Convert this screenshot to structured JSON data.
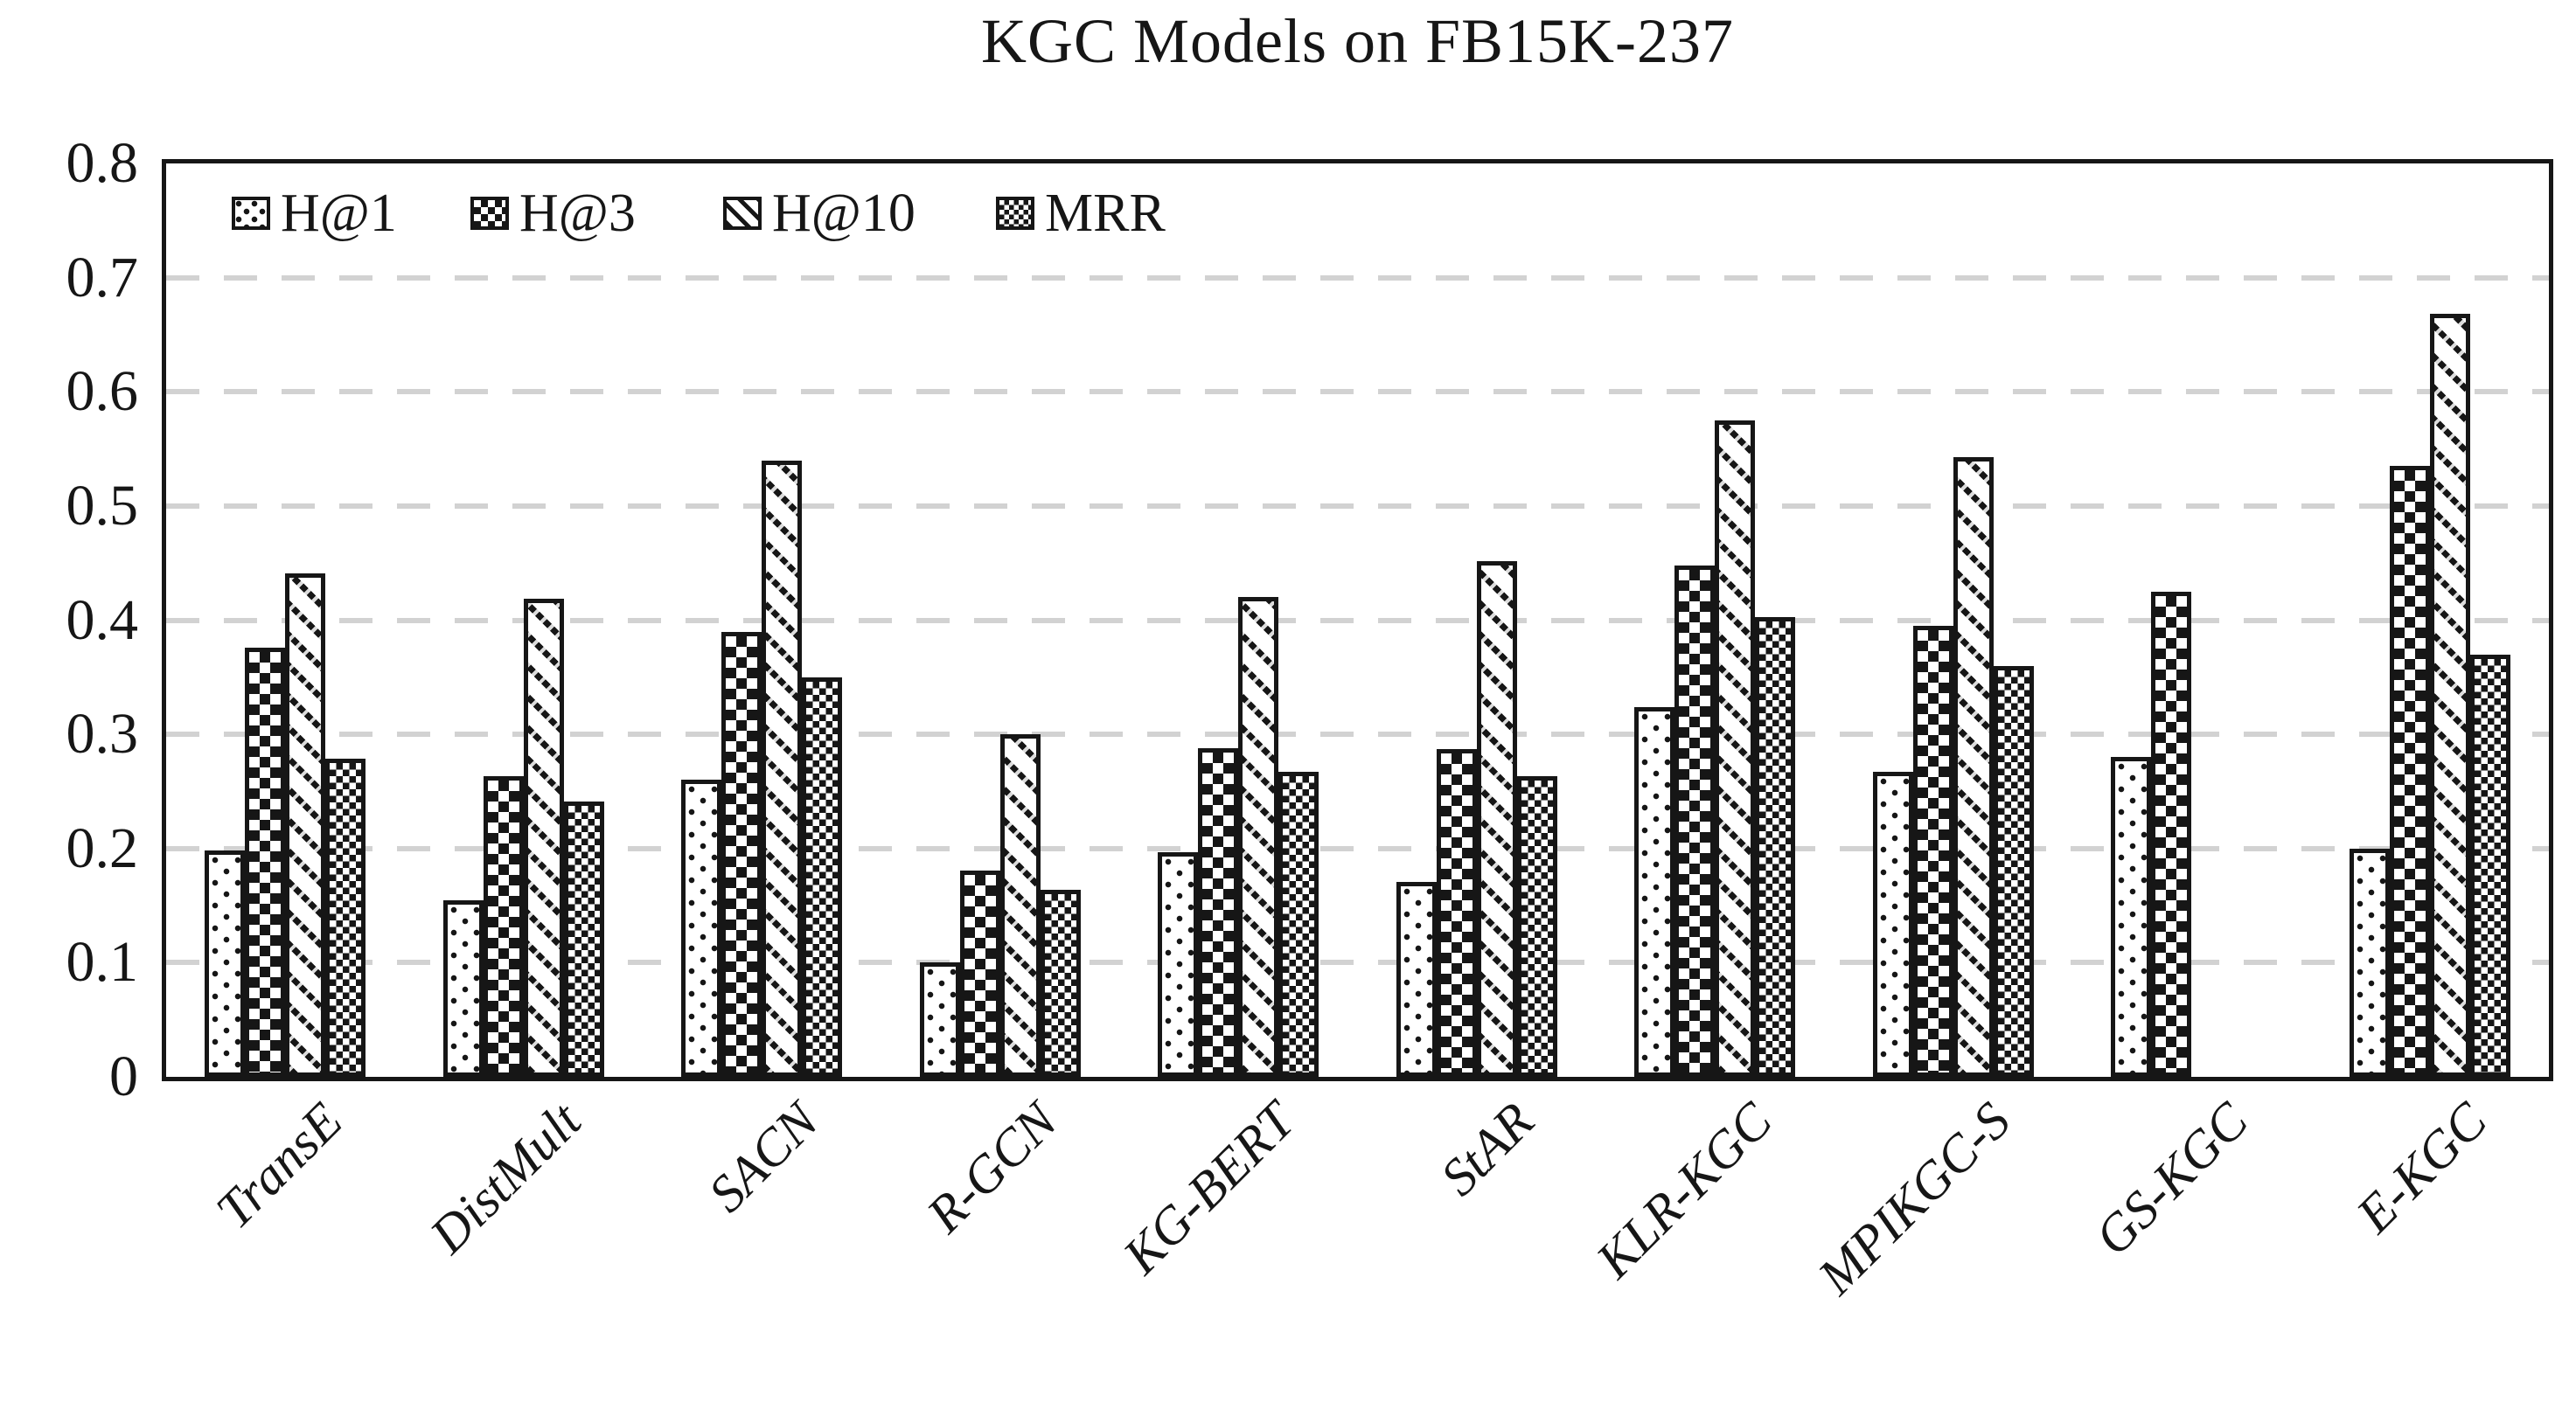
{
  "chart_data": {
    "type": "bar",
    "title": "KGC Models on FB15K-237",
    "categories": [
      "TransE",
      "DistMult",
      "SACN",
      "R-GCN",
      "KG-BERT",
      "StAR",
      "KLR-KGC",
      "MPIKGC-S",
      "GS-KGC",
      "E-KGC"
    ],
    "series": [
      {
        "name": "H@1",
        "pattern": "sparse-dots",
        "values": [
          0.198,
          0.155,
          0.26,
          0.1,
          0.197,
          0.171,
          0.324,
          0.267,
          0.28,
          0.2
        ]
      },
      {
        "name": "H@3",
        "pattern": "coarse-checkerboard",
        "values": [
          0.376,
          0.263,
          0.39,
          0.181,
          0.288,
          0.287,
          0.448,
          0.395,
          0.425,
          0.535
        ]
      },
      {
        "name": "H@10",
        "pattern": "diagonal-stripes",
        "values": [
          0.441,
          0.419,
          0.54,
          0.3,
          0.42,
          0.452,
          0.575,
          0.543,
          null,
          0.668
        ]
      },
      {
        "name": "MRR",
        "pattern": "fine-checkerboard",
        "values": [
          0.279,
          0.241,
          0.35,
          0.164,
          0.267,
          0.263,
          0.403,
          0.36,
          null,
          0.37
        ]
      }
    ],
    "xlabel": "",
    "ylabel": "",
    "ylim": [
      0,
      0.8
    ],
    "ytick_step": 0.1,
    "yticks": [
      "0.8",
      "0.7",
      "0.6",
      "0.5",
      "0.4",
      "0.3",
      "0.2",
      "0.1",
      "0"
    ],
    "grid": "horizontal-dashed",
    "gridline_color": "#d2d2d2",
    "bar_color": "#161616",
    "frame_color": "#161616",
    "legend_position": "top-left-inside",
    "x_label_rotation_deg": -45
  }
}
